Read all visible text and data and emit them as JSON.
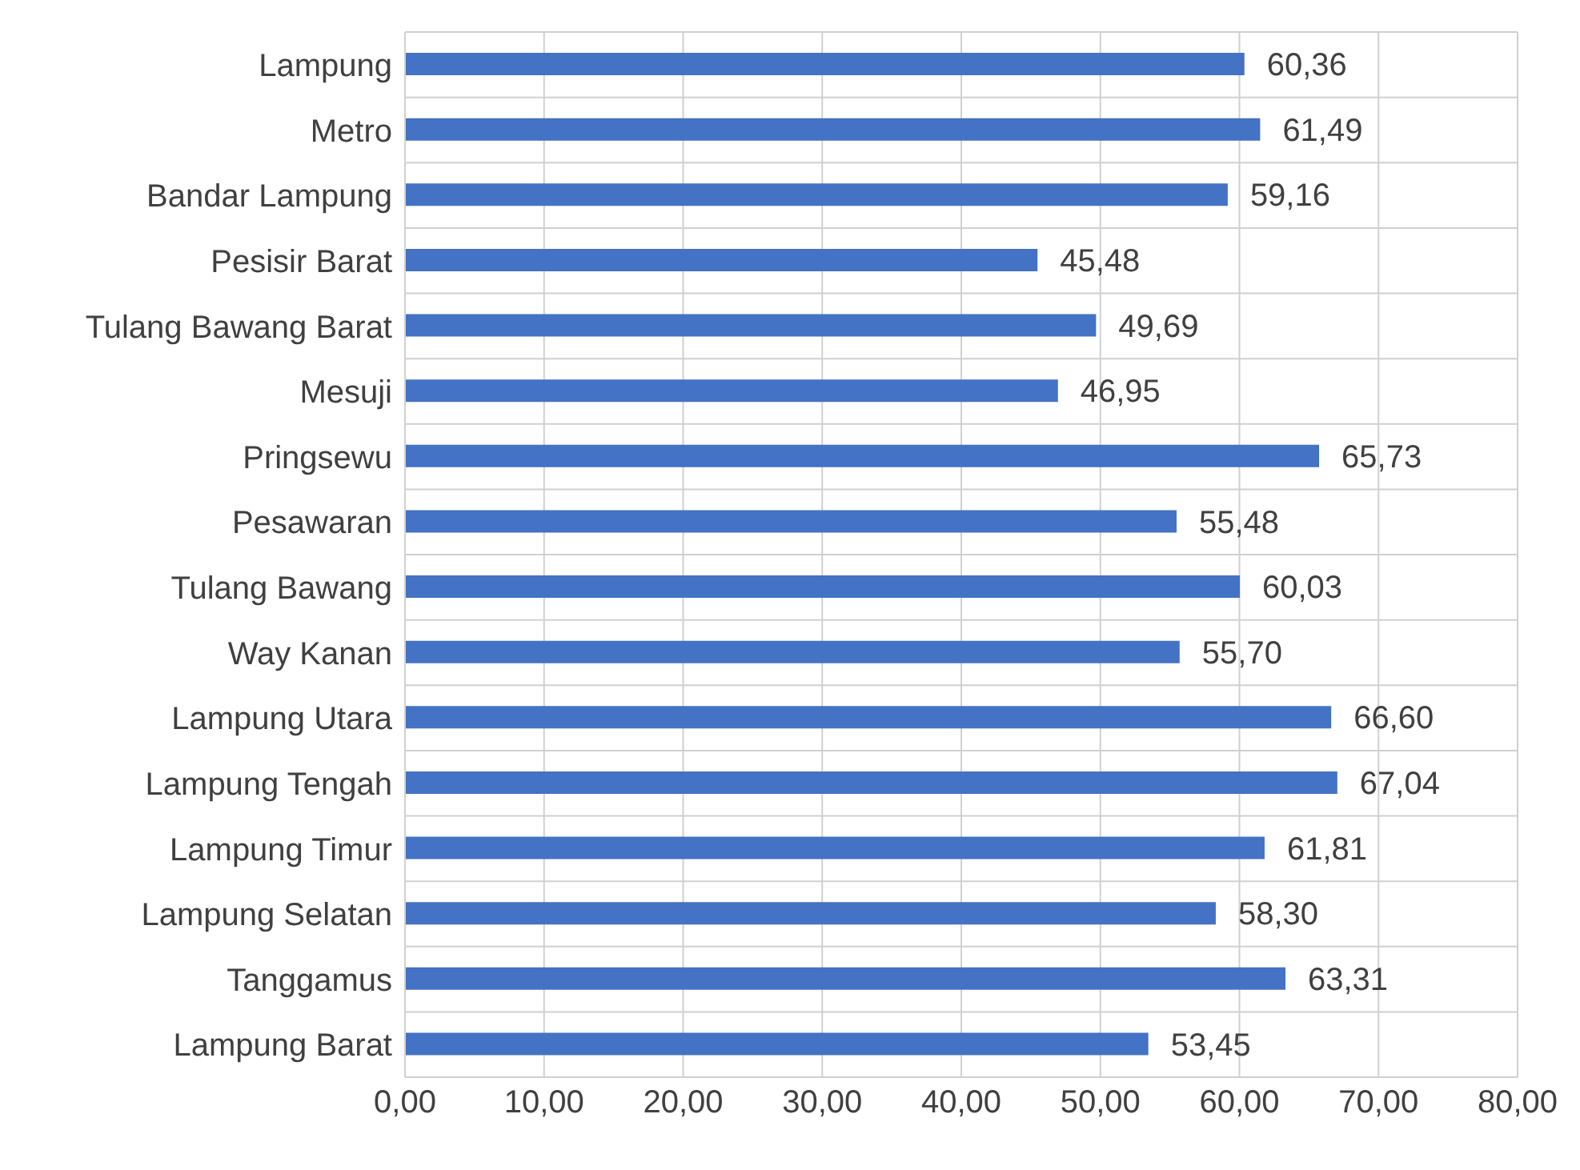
{
  "chart_data": {
    "type": "bar",
    "orientation": "horizontal",
    "categories": [
      "Lampung",
      "Metro",
      "Bandar Lampung",
      "Pesisir Barat",
      "Tulang Bawang Barat",
      "Mesuji",
      "Pringsewu",
      "Pesawaran",
      "Tulang Bawang",
      "Way Kanan",
      "Lampung Utara",
      "Lampung Tengah",
      "Lampung Timur",
      "Lampung Selatan",
      "Tanggamus",
      "Lampung Barat"
    ],
    "values": [
      60.36,
      61.49,
      59.16,
      45.48,
      49.69,
      46.95,
      65.73,
      55.48,
      60.03,
      55.7,
      66.6,
      67.04,
      61.81,
      58.3,
      63.31,
      53.45
    ],
    "color": "#4472c4",
    "value_labels": [
      "60,36",
      "61,49",
      "59,16",
      "45,48",
      "49,69",
      "46,95",
      "65,73",
      "55,48",
      "60,03",
      "55,70",
      "66,60",
      "67,04",
      "61,81",
      "58,30",
      "63,31",
      "53,45"
    ],
    "xlim": [
      0,
      80
    ],
    "xticks": [
      {
        "value": 0,
        "label": "0,00"
      },
      {
        "value": 10,
        "label": "10,00"
      },
      {
        "value": 20,
        "label": "20,00"
      },
      {
        "value": 30,
        "label": "30,00"
      },
      {
        "value": 40,
        "label": "40,00"
      },
      {
        "value": 50,
        "label": "50,00"
      },
      {
        "value": 60,
        "label": "60,00"
      },
      {
        "value": 70,
        "label": "70,00"
      },
      {
        "value": 80,
        "label": "80,00"
      }
    ],
    "grid": true
  }
}
